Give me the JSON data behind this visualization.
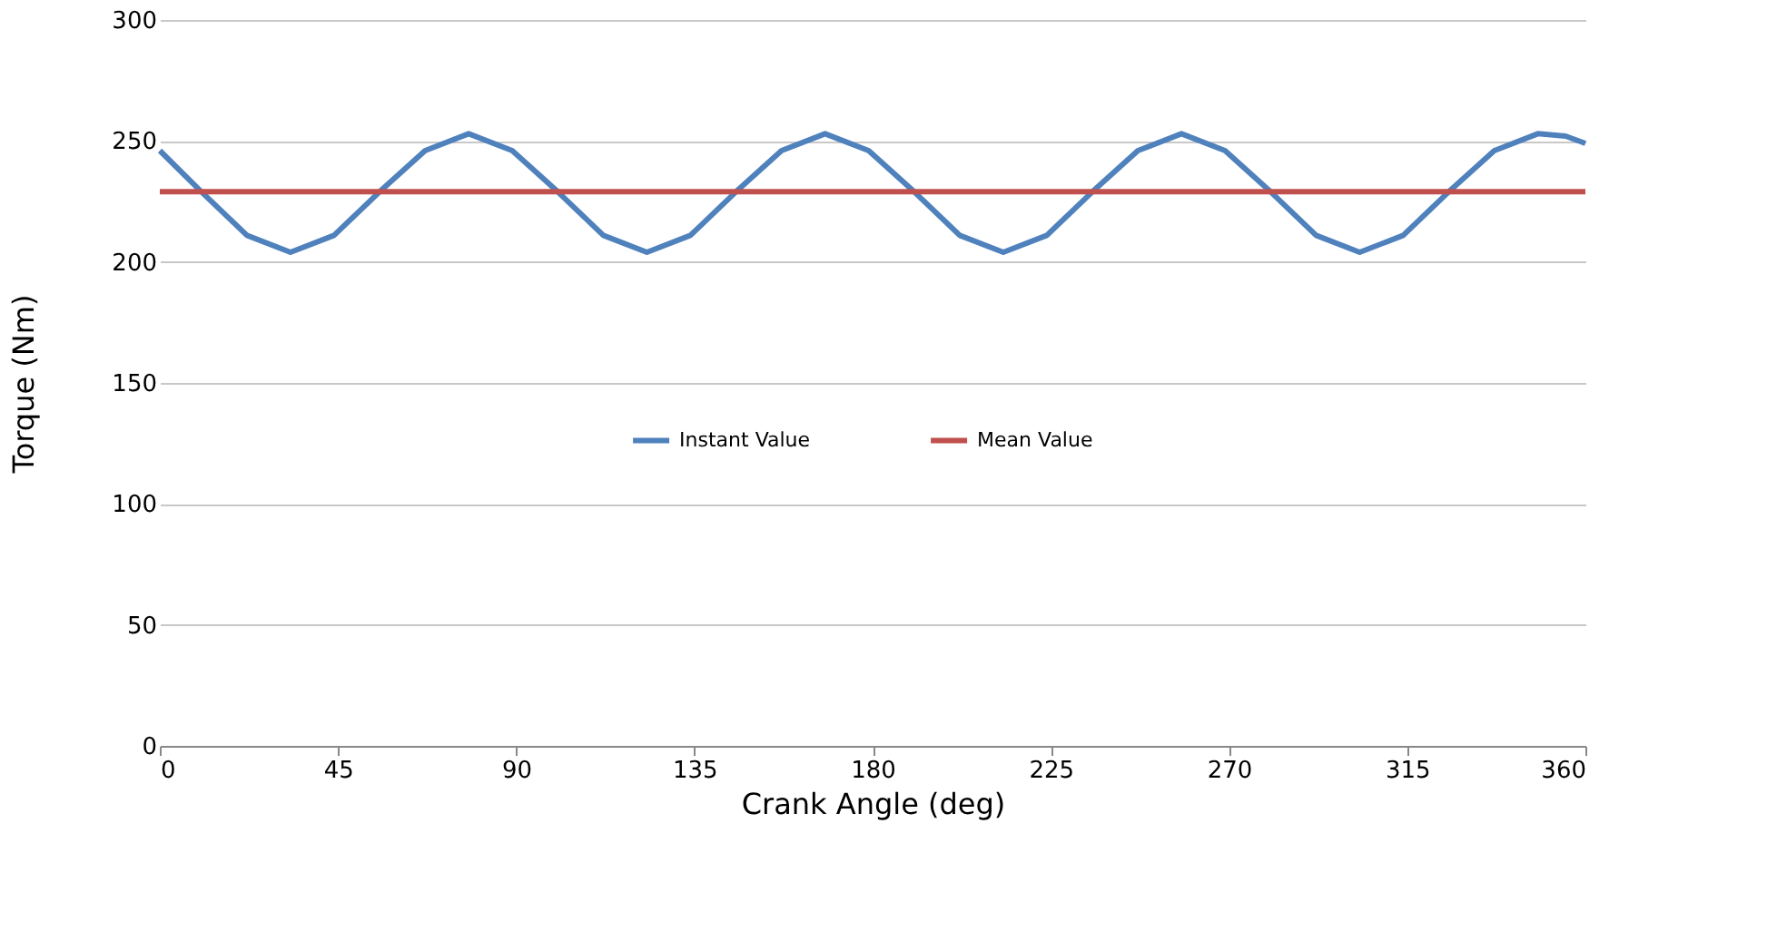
{
  "chart_data": {
    "type": "line",
    "xlabel": "Crank Angle (deg)",
    "ylabel": "Torque (Nm)",
    "xlim": [
      0,
      360
    ],
    "xticks": [
      0,
      45,
      90,
      135,
      180,
      225,
      270,
      315,
      360
    ],
    "ylim": [
      0,
      300
    ],
    "yticks": [
      0,
      50,
      100,
      150,
      200,
      250,
      300
    ],
    "grid": "y",
    "legend": "center",
    "line_style": "solid",
    "marker": "none",
    "series": [
      {
        "name": "Instant Value",
        "color": "#4f81bd",
        "x": [
          0,
          10.5,
          22,
          33,
          44,
          55.5,
          67,
          78,
          89,
          100.5,
          112,
          123,
          134,
          145.5,
          157,
          168,
          179,
          190.5,
          202,
          213,
          224,
          235.5,
          247,
          258,
          269,
          280.5,
          292,
          303,
          314,
          325.5,
          337,
          348,
          355,
          360
        ],
        "values": [
          246,
          229,
          211,
          204,
          211,
          229,
          246,
          253,
          246,
          229,
          211,
          204,
          211,
          229,
          246,
          253,
          246,
          229,
          211,
          204,
          211,
          229,
          246,
          253,
          246,
          229,
          211,
          204,
          211,
          229,
          246,
          253,
          252,
          249
        ]
      },
      {
        "name": "Mean Value",
        "color": "#c0504d",
        "x": [
          0,
          360
        ],
        "values": [
          229,
          229
        ]
      }
    ]
  }
}
